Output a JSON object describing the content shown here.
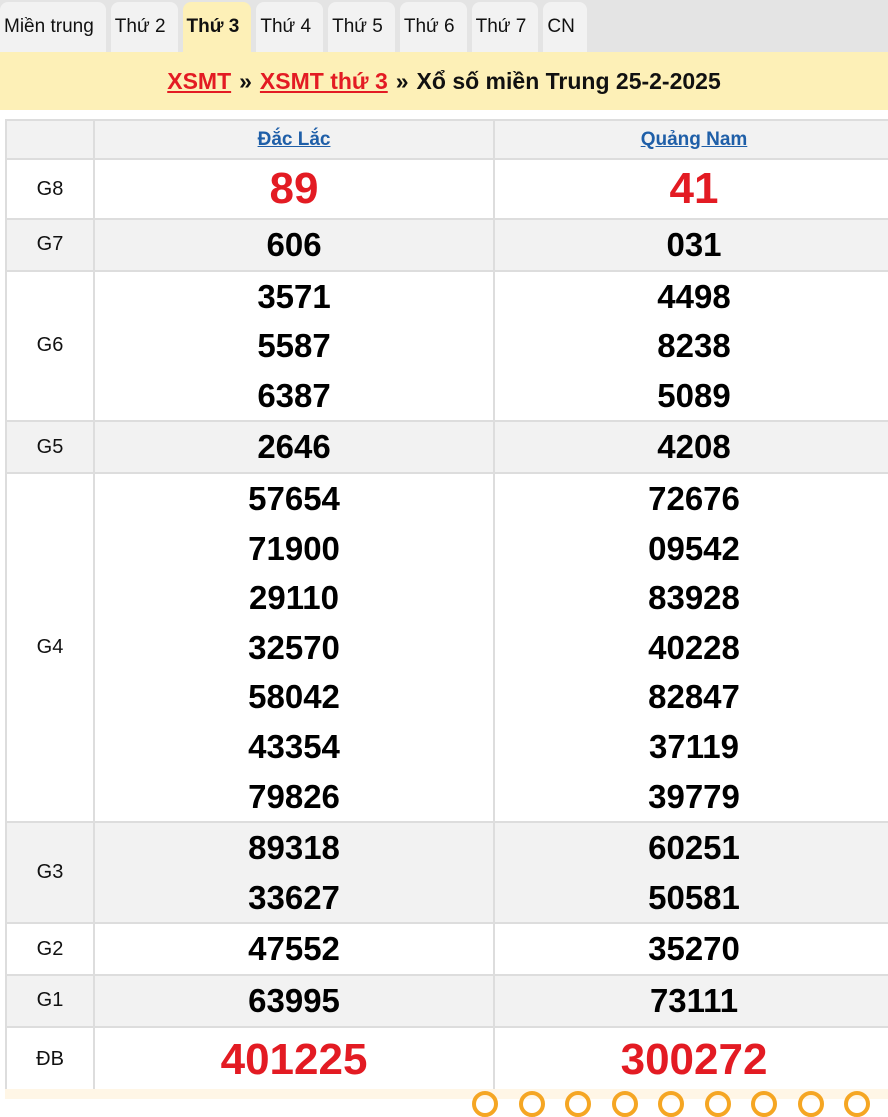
{
  "tabs": [
    {
      "label": "Miền trung",
      "active": false
    },
    {
      "label": "Thứ 2",
      "active": false
    },
    {
      "label": "Thứ 3",
      "active": true
    },
    {
      "label": "Thứ 4",
      "active": false
    },
    {
      "label": "Thứ 5",
      "active": false
    },
    {
      "label": "Thứ 6",
      "active": false
    },
    {
      "label": "Thứ 7",
      "active": false
    },
    {
      "label": "CN",
      "active": false
    }
  ],
  "breadcrumb": {
    "link1": "XSMT",
    "sep": "»",
    "link2": "XSMT thứ 3",
    "title": "Xổ số miền Trung 25-2-2025"
  },
  "provinces": [
    "Đắc Lắc",
    "Quảng Nam"
  ],
  "prizes": [
    {
      "label": "G8",
      "style": "red",
      "values": [
        [
          "89"
        ],
        [
          "41"
        ]
      ]
    },
    {
      "label": "G7",
      "values": [
        [
          "606"
        ],
        [
          "031"
        ]
      ]
    },
    {
      "label": "G6",
      "values": [
        [
          "3571",
          "5587",
          "6387"
        ],
        [
          "4498",
          "8238",
          "5089"
        ]
      ]
    },
    {
      "label": "G5",
      "values": [
        [
          "2646"
        ],
        [
          "4208"
        ]
      ]
    },
    {
      "label": "G4",
      "values": [
        [
          "57654",
          "71900",
          "29110",
          "32570",
          "58042",
          "43354",
          "79826"
        ],
        [
          "72676",
          "09542",
          "83928",
          "40228",
          "82847",
          "37119",
          "39779"
        ]
      ]
    },
    {
      "label": "G3",
      "values": [
        [
          "89318",
          "33627"
        ],
        [
          "60251",
          "50581"
        ]
      ]
    },
    {
      "label": "G2",
      "values": [
        [
          "47552"
        ],
        [
          "35270"
        ]
      ]
    },
    {
      "label": "G1",
      "values": [
        [
          "63995"
        ],
        [
          "73111"
        ]
      ]
    },
    {
      "label": "ĐB",
      "style": "big",
      "values": [
        [
          "401225"
        ],
        [
          "300272"
        ]
      ]
    }
  ],
  "colors": {
    "accent": "#e31b23",
    "banner": "#fdf0b7",
    "link": "#1f5fa8"
  }
}
